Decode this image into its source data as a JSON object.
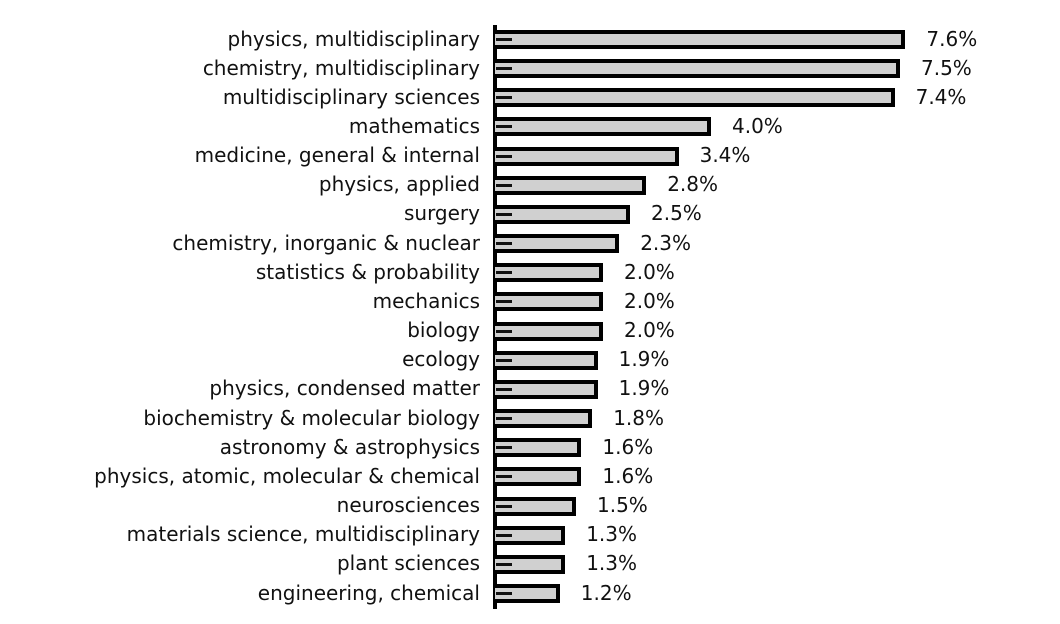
{
  "chart_data": {
    "type": "bar",
    "orientation": "horizontal",
    "title": "",
    "xlabel": "",
    "ylabel": "",
    "grid": false,
    "legend": null,
    "bar_fill": "#d0d0d0",
    "bar_edge": "#000000",
    "categories": [
      "physics, multidisciplinary",
      "chemistry, multidisciplinary",
      "multidisciplinary sciences",
      "mathematics",
      "medicine, general & internal",
      "physics, applied",
      "surgery",
      "chemistry, inorganic & nuclear",
      "statistics & probability",
      "mechanics",
      "biology",
      "ecology",
      "physics, condensed matter",
      "biochemistry & molecular biology",
      "astronomy & astrophysics",
      "physics, atomic, molecular & chemical",
      "neurosciences",
      "materials science, multidisciplinary",
      "plant sciences",
      "engineering, chemical"
    ],
    "values": [
      7.6,
      7.5,
      7.4,
      4.0,
      3.4,
      2.8,
      2.5,
      2.3,
      2.0,
      2.0,
      2.0,
      1.9,
      1.9,
      1.8,
      1.6,
      1.6,
      1.5,
      1.3,
      1.3,
      1.2
    ],
    "value_labels": [
      "7.6%",
      "7.5%",
      "7.4%",
      "4.0%",
      "3.4%",
      "2.8%",
      "2.5%",
      "2.3%",
      "2.0%",
      "2.0%",
      "2.0%",
      "1.9%",
      "1.9%",
      "1.8%",
      "1.6%",
      "1.6%",
      "1.5%",
      "1.3%",
      "1.3%",
      "1.2%"
    ],
    "unit": "%",
    "xlim": [
      0,
      8
    ]
  }
}
